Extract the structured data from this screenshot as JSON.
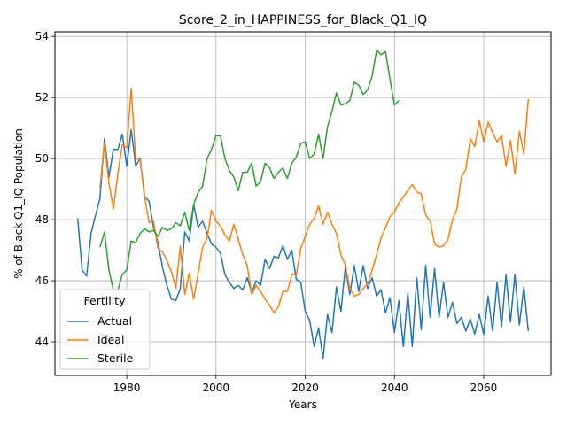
{
  "chart_data": {
    "type": "line",
    "title": "Score_2_in_HAPPINESS_for_Black_Q1_IQ",
    "xlabel": "Years",
    "ylabel": "% of Black Q1_IQ Population",
    "xlim": [
      1963.9,
      2075.1
    ],
    "ylim": [
      42.9,
      54.15
    ],
    "xticks": [
      1980,
      2000,
      2020,
      2040,
      2060
    ],
    "yticks": [
      44,
      46,
      48,
      50,
      52,
      54
    ],
    "grid": true,
    "legend": {
      "title": "Fertility",
      "placement": "lower-left"
    },
    "series": [
      {
        "name": "Actual",
        "color": "#1f77b4",
        "x": [
          1969,
          1970,
          1971,
          1972,
          1973,
          1974,
          1975,
          1976,
          1977,
          1978,
          1979,
          1980,
          1981,
          1982,
          1983,
          1984,
          1985,
          1986,
          1987,
          1988,
          1989,
          1990,
          1991,
          1992,
          1993,
          1994,
          1995,
          1996,
          1997,
          1998,
          1999,
          2000,
          2001,
          2002,
          2003,
          2004,
          2005,
          2006,
          2007,
          2008,
          2009,
          2010,
          2011,
          2012,
          2013,
          2014,
          2015,
          2016,
          2017,
          2018,
          2019,
          2020,
          2021,
          2022,
          2023,
          2024,
          2025,
          2026,
          2027,
          2028,
          2029,
          2030,
          2031,
          2032,
          2033,
          2034,
          2035,
          2036,
          2037,
          2038,
          2039,
          2040,
          2041,
          2042,
          2043,
          2044,
          2045,
          2046,
          2047,
          2048,
          2049,
          2050,
          2051,
          2052,
          2053,
          2054,
          2055,
          2056,
          2057,
          2058,
          2059,
          2060,
          2061,
          2062,
          2063,
          2064,
          2065,
          2066,
          2067,
          2068,
          2069,
          2070
        ],
        "values": [
          48.05,
          46.35,
          46.15,
          47.55,
          48.15,
          48.7,
          50.65,
          49.4,
          50.3,
          50.3,
          50.8,
          49.75,
          50.95,
          49.75,
          50.0,
          48.75,
          48.6,
          47.75,
          47.25,
          46.45,
          45.85,
          45.4,
          45.35,
          45.75,
          47.6,
          47.3,
          48.5,
          47.75,
          47.95,
          47.55,
          47.2,
          47.1,
          46.9,
          46.2,
          45.95,
          45.75,
          45.85,
          45.7,
          46.1,
          45.6,
          46.0,
          45.85,
          46.7,
          46.4,
          46.8,
          46.75,
          47.15,
          46.7,
          47.0,
          46.05,
          45.95,
          45.0,
          44.7,
          43.85,
          44.45,
          43.45,
          44.9,
          44.3,
          45.8,
          45.0,
          46.45,
          45.55,
          46.5,
          45.65,
          46.5,
          45.75,
          46.1,
          45.5,
          45.7,
          44.95,
          45.45,
          44.3,
          45.35,
          43.85,
          45.6,
          43.85,
          46.1,
          44.4,
          46.5,
          44.8,
          46.4,
          44.8,
          45.95,
          44.8,
          45.3,
          44.6,
          44.8,
          44.35,
          44.75,
          44.25,
          44.9,
          44.25,
          45.5,
          44.35,
          45.95,
          44.5,
          46.2,
          44.65,
          46.2,
          44.55,
          45.8,
          44.35
        ]
      },
      {
        "name": "Ideal",
        "color": "#ff7f0e",
        "x": [
          1974,
          1975,
          1976,
          1977,
          1978,
          1979,
          1980,
          1981,
          1982,
          1983,
          1984,
          1985,
          1986,
          1987,
          1988,
          1989,
          1990,
          1991,
          1992,
          1993,
          1994,
          1995,
          1996,
          1997,
          1998,
          1999,
          2000,
          2001,
          2002,
          2003,
          2004,
          2005,
          2006,
          2007,
          2008,
          2009,
          2010,
          2011,
          2012,
          2013,
          2014,
          2015,
          2016,
          2017,
          2018,
          2019,
          2020,
          2021,
          2022,
          2023,
          2024,
          2025,
          2026,
          2027,
          2028,
          2029,
          2030,
          2031,
          2032,
          2033,
          2034,
          2035,
          2036,
          2037,
          2038,
          2039,
          2040,
          2041,
          2042,
          2043,
          2044,
          2045,
          2046,
          2047,
          2048,
          2049,
          2050,
          2051,
          2052,
          2053,
          2054,
          2055,
          2056,
          2057,
          2058,
          2059,
          2060,
          2061,
          2062,
          2063,
          2064,
          2065,
          2066,
          2067,
          2068,
          2069,
          2070
        ],
        "values": [
          49.05,
          50.5,
          49.2,
          48.35,
          49.5,
          50.45,
          50.35,
          52.3,
          50.0,
          49.95,
          48.75,
          47.9,
          47.95,
          47.05,
          46.95,
          46.65,
          46.3,
          45.75,
          47.15,
          45.55,
          46.25,
          45.4,
          46.25,
          47.1,
          47.4,
          48.3,
          47.95,
          47.8,
          47.5,
          47.3,
          47.85,
          47.35,
          46.85,
          46.5,
          45.55,
          45.85,
          45.65,
          45.4,
          45.2,
          44.95,
          45.15,
          45.65,
          45.65,
          46.2,
          46.2,
          47.05,
          47.45,
          47.85,
          48.05,
          48.45,
          47.85,
          48.25,
          47.85,
          47.55,
          46.85,
          46.5,
          45.75,
          45.5,
          45.55,
          45.75,
          45.9,
          46.35,
          46.85,
          47.4,
          47.75,
          48.1,
          48.25,
          48.55,
          48.75,
          48.95,
          49.15,
          48.9,
          48.85,
          48.15,
          47.95,
          47.2,
          47.1,
          47.15,
          47.35,
          48.0,
          48.35,
          49.4,
          49.65,
          50.65,
          50.4,
          51.25,
          50.55,
          51.2,
          50.85,
          50.55,
          50.75,
          49.75,
          50.6,
          49.5,
          50.9,
          50.15,
          51.95
        ]
      },
      {
        "name": "Sterile",
        "color": "#2ca02c",
        "x": [
          1974,
          1975,
          1976,
          1977,
          1978,
          1979,
          1980,
          1981,
          1982,
          1983,
          1984,
          1985,
          1986,
          1987,
          1988,
          1989,
          1990,
          1991,
          1992,
          1993,
          1994,
          1995,
          1996,
          1997,
          1998,
          1999,
          2000,
          2001,
          2002,
          2003,
          2004,
          2005,
          2006,
          2007,
          2008,
          2009,
          2010,
          2011,
          2012,
          2013,
          2014,
          2015,
          2016,
          2017,
          2018,
          2019,
          2020,
          2021,
          2022,
          2023,
          2024,
          2025,
          2026,
          2027,
          2028,
          2029,
          2030,
          2031,
          2032,
          2033,
          2034,
          2035,
          2036,
          2037,
          2038,
          2039,
          2040,
          2041
        ],
        "values": [
          47.1,
          47.6,
          46.35,
          45.7,
          45.7,
          46.2,
          46.35,
          47.3,
          47.25,
          47.55,
          47.7,
          47.6,
          47.65,
          47.45,
          47.75,
          47.65,
          47.7,
          47.9,
          47.8,
          48.25,
          47.65,
          48.5,
          48.9,
          49.1,
          50.0,
          50.3,
          50.75,
          50.75,
          50.0,
          49.6,
          49.4,
          48.95,
          49.55,
          49.55,
          49.85,
          49.1,
          49.25,
          49.85,
          49.7,
          49.35,
          49.55,
          49.7,
          49.35,
          49.85,
          50.05,
          50.5,
          50.55,
          50.0,
          50.15,
          50.8,
          50.0,
          51.05,
          51.55,
          52.15,
          51.75,
          51.8,
          51.9,
          52.5,
          52.4,
          52.1,
          52.25,
          52.7,
          53.55,
          53.4,
          53.5,
          52.6,
          51.75,
          51.9
        ]
      }
    ]
  }
}
